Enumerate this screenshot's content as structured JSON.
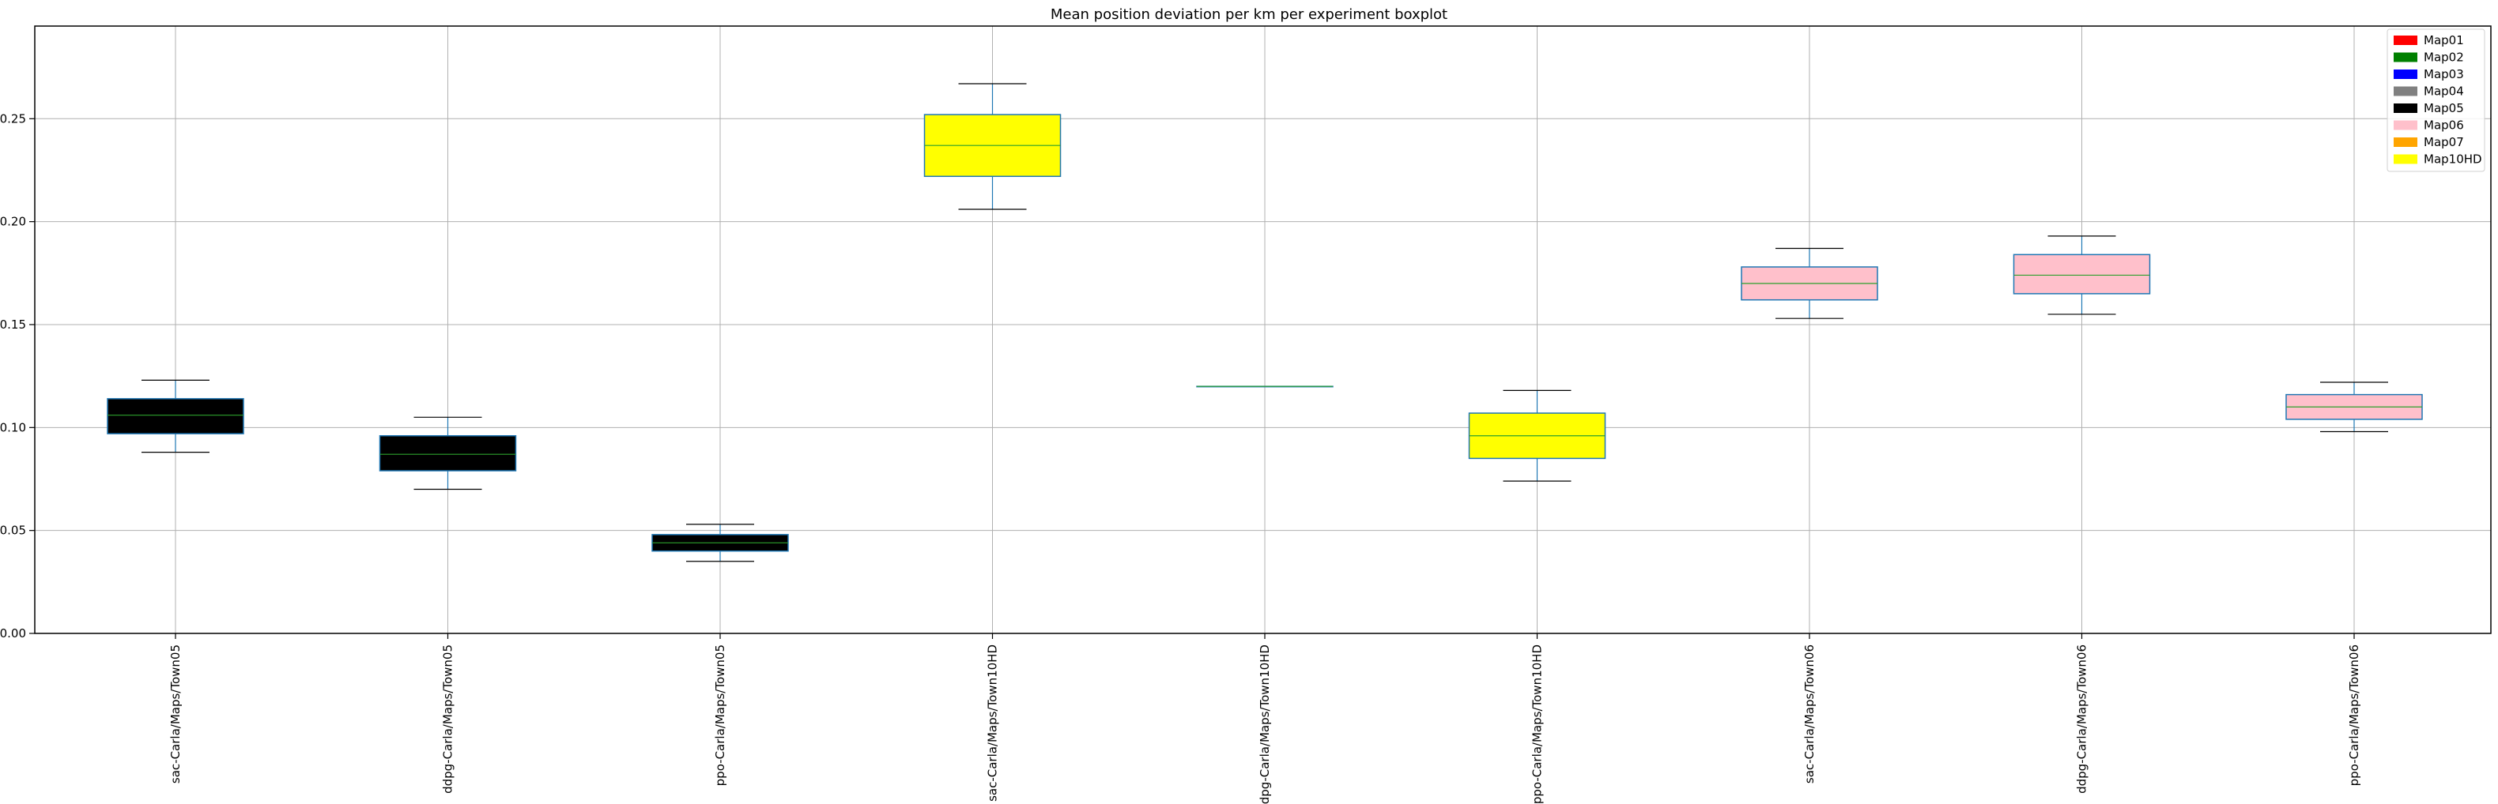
{
  "chart_data": {
    "type": "boxplot",
    "title": "Mean position deviation per km per experiment boxplot",
    "xlabel": "",
    "ylabel": "",
    "ylim": [
      0,
      0.295
    ],
    "yticks": [
      0.0,
      0.05,
      0.1,
      0.15,
      0.2,
      0.25
    ],
    "ytick_labels": [
      "0.00",
      "0.05",
      "0.10",
      "0.15",
      "0.20",
      "0.25"
    ],
    "grid": true,
    "legend_position": "top-right",
    "categories": [
      "sac-Carla/Maps/Town05",
      "ddpg-Carla/Maps/Town05",
      "ppo-Carla/Maps/Town05",
      "sac-Carla/Maps/Town10HD",
      "ddpg-Carla/Maps/Town10HD",
      "ppo-Carla/Maps/Town10HD",
      "sac-Carla/Maps/Town06",
      "ddpg-Carla/Maps/Town06",
      "ppo-Carla/Maps/Town06"
    ],
    "boxes": [
      {
        "whisker_low": 0.088,
        "q1": 0.097,
        "median": 0.106,
        "q3": 0.114,
        "whisker_high": 0.123,
        "map": "Map05"
      },
      {
        "whisker_low": 0.07,
        "q1": 0.079,
        "median": 0.087,
        "q3": 0.096,
        "whisker_high": 0.105,
        "map": "Map05"
      },
      {
        "whisker_low": 0.035,
        "q1": 0.04,
        "median": 0.044,
        "q3": 0.048,
        "whisker_high": 0.053,
        "map": "Map05"
      },
      {
        "whisker_low": 0.206,
        "q1": 0.222,
        "median": 0.237,
        "q3": 0.252,
        "whisker_high": 0.267,
        "map": "Map10HD"
      },
      {
        "whisker_low": 0.12,
        "q1": 0.12,
        "median": 0.12,
        "q3": 0.12,
        "whisker_high": 0.12,
        "map": "Map10HD"
      },
      {
        "whisker_low": 0.074,
        "q1": 0.085,
        "median": 0.096,
        "q3": 0.107,
        "whisker_high": 0.118,
        "map": "Map10HD"
      },
      {
        "whisker_low": 0.153,
        "q1": 0.162,
        "median": 0.17,
        "q3": 0.178,
        "whisker_high": 0.187,
        "map": "Map06"
      },
      {
        "whisker_low": 0.155,
        "q1": 0.165,
        "median": 0.174,
        "q3": 0.184,
        "whisker_high": 0.193,
        "map": "Map06"
      },
      {
        "whisker_low": 0.098,
        "q1": 0.104,
        "median": 0.11,
        "q3": 0.116,
        "whisker_high": 0.122,
        "map": "Map06"
      }
    ],
    "legend": [
      {
        "label": "Map01",
        "color": "#ff0000"
      },
      {
        "label": "Map02",
        "color": "#008000"
      },
      {
        "label": "Map03",
        "color": "#0000ff"
      },
      {
        "label": "Map04",
        "color": "#808080"
      },
      {
        "label": "Map05",
        "color": "#000000"
      },
      {
        "label": "Map06",
        "color": "#ffc0cb"
      },
      {
        "label": "Map07",
        "color": "#ffa500"
      },
      {
        "label": "Map10HD",
        "color": "#ffff00"
      }
    ],
    "colors": {
      "box_edge": "#1f77b4",
      "whisker": "#1f77b4",
      "cap": "#000000",
      "median": "#2ca02c",
      "grid": "#b0b0b0"
    }
  }
}
